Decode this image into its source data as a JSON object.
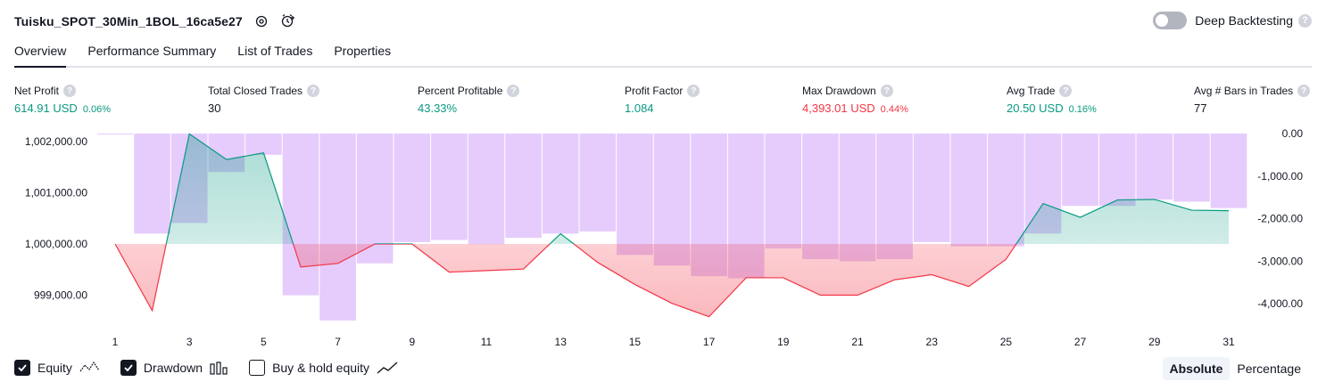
{
  "header": {
    "title": "Tuisku_SPOT_30Min_1BOL_16ca5e27",
    "deep_backtesting_label": "Deep Backtesting",
    "help_glyph": "?"
  },
  "tabs": [
    {
      "label": "Overview",
      "active": true
    },
    {
      "label": "Performance Summary",
      "active": false
    },
    {
      "label": "List of Trades",
      "active": false
    },
    {
      "label": "Properties",
      "active": false
    }
  ],
  "metrics": [
    {
      "label": "Net Profit",
      "value": "614.91 USD",
      "pct": "0.06%",
      "color": "green"
    },
    {
      "label": "Total Closed Trades",
      "value": "30",
      "pct": "",
      "color": "dark"
    },
    {
      "label": "Percent Profitable",
      "value": "43.33%",
      "pct": "",
      "color": "green"
    },
    {
      "label": "Profit Factor",
      "value": "1.084",
      "pct": "",
      "color": "green"
    },
    {
      "label": "Max Drawdown",
      "value": "4,393.01 USD",
      "pct": "0.44%",
      "color": "red"
    },
    {
      "label": "Avg Trade",
      "value": "20.50 USD",
      "pct": "0.16%",
      "color": "green"
    },
    {
      "label": "Avg # Bars in Trades",
      "value": "77",
      "pct": "",
      "color": "dark"
    }
  ],
  "legend": {
    "equity_label": "Equity",
    "drawdown_label": "Drawdown",
    "buyhold_label": "Buy & hold equity"
  },
  "mode": {
    "absolute": "Absolute",
    "percentage": "Percentage"
  },
  "colors": {
    "equity_up": "#089981",
    "equity_down": "#f23645",
    "drawdown_bar": "#e1c3fc",
    "text": "#131722"
  },
  "chart_data": {
    "type": "bar+line",
    "x_ticks": [
      "1",
      "3",
      "5",
      "7",
      "9",
      "11",
      "13",
      "15",
      "17",
      "19",
      "21",
      "23",
      "25",
      "27",
      "29",
      "31"
    ],
    "equity": {
      "name": "Equity",
      "baseline": 1000000,
      "x": [
        1,
        2,
        3,
        4,
        5,
        6,
        7,
        8,
        9,
        10,
        11,
        12,
        13,
        14,
        15,
        16,
        17,
        18,
        19,
        20,
        21,
        22,
        23,
        24,
        25,
        26,
        27,
        28,
        29,
        30,
        31
      ],
      "values": [
        1000000,
        998700,
        1002150,
        1001650,
        1001780,
        999550,
        999620,
        1000000,
        1000000,
        999450,
        999480,
        999510,
        1000200,
        999640,
        999210,
        998840,
        998580,
        999340,
        999340,
        999000,
        999000,
        999300,
        999400,
        999170,
        999700,
        1000790,
        1000520,
        1000860,
        1000870,
        1000660,
        1000650
      ]
    },
    "drawdown": {
      "name": "Drawdown",
      "x": [
        1,
        2,
        3,
        4,
        5,
        6,
        7,
        8,
        9,
        10,
        11,
        12,
        13,
        14,
        15,
        16,
        17,
        18,
        19,
        20,
        21,
        22,
        23,
        24,
        25,
        26,
        27,
        28,
        29,
        30,
        31
      ],
      "values": [
        0,
        -2350,
        -2100,
        -900,
        -500,
        -3800,
        -4393,
        -3050,
        -2550,
        -2500,
        -2600,
        -2450,
        -2350,
        -2300,
        -2850,
        -3100,
        -3350,
        -3400,
        -2700,
        -2950,
        -3000,
        -2950,
        -2550,
        -2650,
        -2650,
        -2350,
        -1700,
        -1700,
        -1550,
        -1600,
        -1750
      ]
    },
    "y_left": {
      "ticks": [
        "999,000.00",
        "1,000,000.00",
        "1,001,000.00",
        "1,002,000.00"
      ],
      "tick_values": [
        999000,
        1000000,
        1001000,
        1002000
      ]
    },
    "y_right": {
      "ticks": [
        "0.00",
        "-1,000.00",
        "-2,000.00",
        "-3,000.00",
        "-4,000.00"
      ],
      "tick_values": [
        0,
        -1000,
        -2000,
        -3000,
        -4000
      ]
    }
  }
}
